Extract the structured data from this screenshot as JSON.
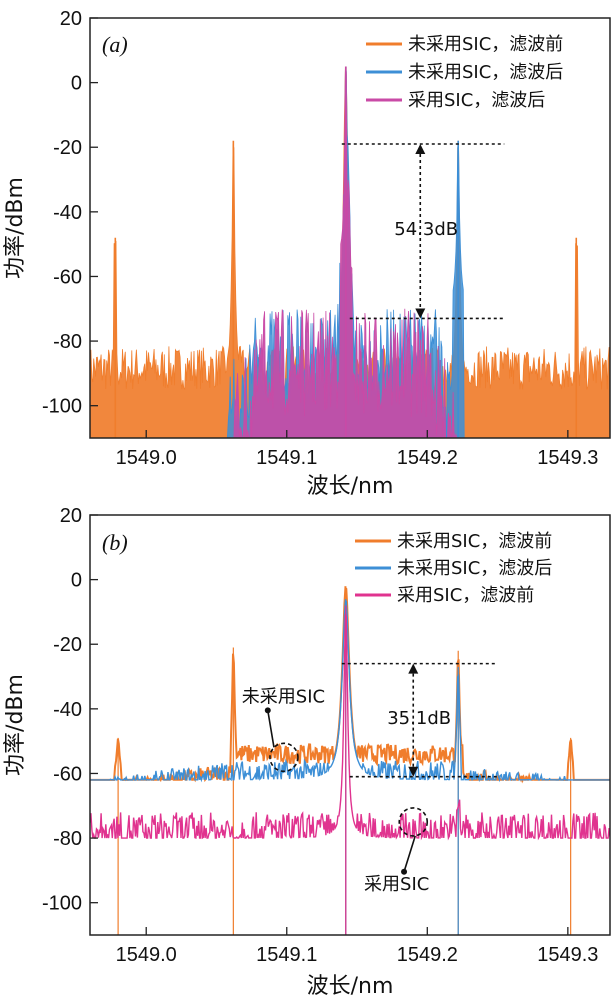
{
  "chart_data": [
    {
      "type": "line",
      "panel_label": "(a)",
      "xlabel": "波长/nm",
      "ylabel": "功率/dBm",
      "xlim": [
        1548.96,
        1549.33
      ],
      "ylim": [
        -110,
        20
      ],
      "xticks": [
        "1549.0",
        "1549.1",
        "1549.2",
        "1549.3"
      ],
      "yticks": [
        "20",
        "0",
        "-20",
        "-40",
        "-60",
        "-80",
        "-100"
      ],
      "legend_position": "top-right",
      "colors": {
        "orange": "#f07d2c",
        "blue": "#3d8fd6",
        "pink": "#c94aa6"
      },
      "series": [
        {
          "name": "未采用SIC，滤波前",
          "color": "#f07d2c",
          "noise_floor_dbm": -90,
          "peaks": [
            {
              "x": 1548.978,
              "y": -48
            },
            {
              "x": 1549.062,
              "y": -18
            },
            {
              "x": 1549.142,
              "y": 5
            },
            {
              "x": 1549.222,
              "y": -18
            },
            {
              "x": 1549.306,
              "y": -48
            }
          ]
        },
        {
          "name": "未采用SIC，滤波后",
          "color": "#3d8fd6",
          "passband_nm": [
            1549.058,
            1549.226
          ],
          "peaks": [
            {
              "x": 1549.142,
              "y": 5
            },
            {
              "x": 1549.222,
              "y": -18
            }
          ]
        },
        {
          "name": "采用SIC，滤波后",
          "color": "#c94aa6",
          "passband_nm": [
            1549.063,
            1549.222
          ],
          "peaks": [
            {
              "x": 1549.142,
              "y": 5
            }
          ]
        }
      ],
      "annotations": [
        {
          "text": "54.3dB",
          "x_nm": 1549.195,
          "y_top": -19,
          "y_bottom": -73
        }
      ]
    },
    {
      "type": "line",
      "panel_label": "(b)",
      "xlabel": "波长/nm",
      "ylabel": "功率/dBm",
      "xlim": [
        1548.96,
        1549.33
      ],
      "ylim": [
        -110,
        20
      ],
      "xticks": [
        "1549.0",
        "1549.1",
        "1549.2",
        "1549.3"
      ],
      "yticks": [
        "20",
        "0",
        "-20",
        "-40",
        "-60",
        "-80",
        "-100"
      ],
      "legend_position": "top-right",
      "colors": {
        "orange": "#f07d2c",
        "blue": "#3d8fd6",
        "pink": "#e0338f"
      },
      "series": [
        {
          "name": "未采用SIC，滤波前",
          "color": "#f07d2c",
          "peaks": [
            {
              "x": 1548.98,
              "y": -49
            },
            {
              "x": 1549.062,
              "y": -21
            },
            {
              "x": 1549.142,
              "y": -2
            },
            {
              "x": 1549.222,
              "y": -22
            },
            {
              "x": 1549.302,
              "y": -49
            }
          ]
        },
        {
          "name": "未采用SIC，滤波后",
          "color": "#3d8fd6",
          "peaks": [
            {
              "x": 1549.142,
              "y": -6
            },
            {
              "x": 1549.222,
              "y": -27
            }
          ]
        },
        {
          "name": "采用SIC，滤波前",
          "color": "#e0338f",
          "noise_floor_dbm": -78,
          "peaks": [
            {
              "x": 1549.142,
              "y": -8
            }
          ]
        }
      ],
      "annotations": [
        {
          "text": "35.1dB",
          "x_nm": 1549.19,
          "y_top": -26,
          "y_bottom": -61
        },
        {
          "text": "未采用SIC",
          "target_nm": 1549.098,
          "target_dbm": -55
        },
        {
          "text": "采用SIC",
          "target_nm": 1549.19,
          "target_dbm": -75
        }
      ]
    }
  ]
}
